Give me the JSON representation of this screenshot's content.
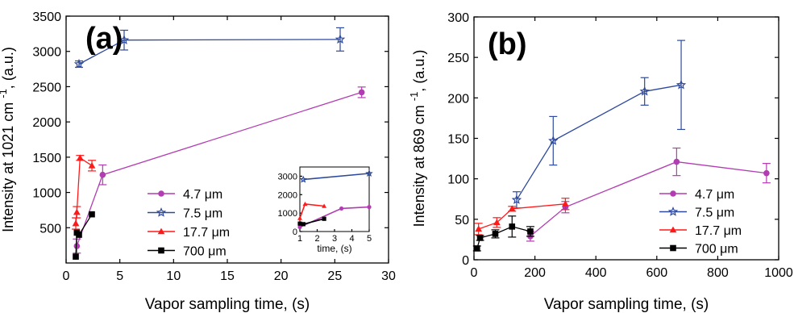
{
  "chart_data": [
    {
      "panel": "(a)",
      "type": "line",
      "xlabel": "Vapor sampling time, (s)",
      "ylabel": "Intensity at 1021 cm",
      "ylabel_sup": "-1",
      "ylabel_suffix": ", (a.u.)",
      "xlim": [
        0,
        30
      ],
      "ylim": [
        0,
        3500
      ],
      "xticks": [
        0,
        5,
        10,
        15,
        20,
        25,
        30
      ],
      "yticks": [
        500,
        1000,
        1500,
        2000,
        2500,
        3000,
        3500
      ],
      "legend_position": "lower-center",
      "series": [
        {
          "name": "4.7 μm",
          "color": "#b23cb2",
          "marker": "circle",
          "x": [
            1.0,
            3.4,
            27.5
          ],
          "y": [
            240,
            1250,
            2420
          ],
          "err": [
            100,
            140,
            75
          ]
        },
        {
          "name": "7.5 μm",
          "color": "#2e4a9e",
          "marker": "star",
          "x": [
            1.2,
            5.4,
            25.5
          ],
          "y": [
            2820,
            3160,
            3170
          ],
          "err": [
            45,
            140,
            165
          ]
        },
        {
          "name": "17.7 μm",
          "color": "#ff1a1a",
          "marker": "triangle",
          "x": [
            0.9,
            1.0,
            1.3,
            2.4
          ],
          "y": [
            560,
            720,
            1490,
            1380
          ],
          "err": [
            80,
            80,
            35,
            75
          ]
        },
        {
          "name": "700 μm",
          "color": "#000000",
          "marker": "square",
          "x": [
            0.9,
            1.0,
            1.2,
            2.4
          ],
          "y": [
            90,
            430,
            400,
            690
          ],
          "err": [
            0,
            0,
            0,
            0
          ]
        }
      ],
      "inset": {
        "xlabel": "time, (s)",
        "xlim": [
          1,
          5
        ],
        "ylim": [
          0,
          3500
        ],
        "xticks": [
          1,
          2,
          3,
          4,
          5
        ],
        "yticks": [
          0,
          1000,
          2000,
          3000
        ],
        "series": [
          {
            "color": "#b23cb2",
            "marker": "circle",
            "x": [
              1.0,
              3.4,
              5.0
            ],
            "y": [
              240,
              1250,
              1330
            ]
          },
          {
            "color": "#2e4a9e",
            "marker": "star",
            "x": [
              1.2,
              5.0
            ],
            "y": [
              2820,
              3150
            ]
          },
          {
            "color": "#ff1a1a",
            "marker": "triangle",
            "x": [
              1.0,
              1.3,
              2.4
            ],
            "y": [
              720,
              1490,
              1380
            ]
          },
          {
            "color": "#000000",
            "marker": "square",
            "x": [
              1.0,
              1.2,
              2.4
            ],
            "y": [
              430,
              400,
              690
            ]
          }
        ]
      }
    },
    {
      "panel": "(b)",
      "type": "line",
      "xlabel": "Vapor sampling time, (s)",
      "ylabel": "Intensity at 869 cm",
      "ylabel_sup": "-1",
      "ylabel_suffix": ", (a.u.)",
      "xlim": [
        0,
        1000
      ],
      "ylim": [
        0,
        300
      ],
      "xticks": [
        0,
        200,
        400,
        600,
        800,
        1000
      ],
      "yticks": [
        0,
        50,
        100,
        150,
        200,
        250,
        300
      ],
      "legend_position": "lower-right",
      "series": [
        {
          "name": "4.7 μm",
          "color": "#b23cb2",
          "marker": "circle",
          "x": [
            185,
            300,
            665,
            960
          ],
          "y": [
            29,
            65,
            121,
            107
          ],
          "err": [
            6,
            7,
            17,
            12
          ]
        },
        {
          "name": "7.5 μm",
          "color": "#2e4a9e",
          "marker": "star",
          "x": [
            140,
            260,
            560,
            680
          ],
          "y": [
            74,
            147,
            208,
            216
          ],
          "err": [
            10,
            30,
            17,
            55
          ]
        },
        {
          "name": "17.7 μm",
          "color": "#ff1a1a",
          "marker": "triangle",
          "x": [
            15,
            75,
            125,
            300
          ],
          "y": [
            38,
            46,
            63,
            69
          ],
          "err": [
            7,
            6,
            3,
            7
          ]
        },
        {
          "name": "700 μm",
          "color": "#000000",
          "marker": "square",
          "x": [
            10,
            20,
            70,
            125,
            185
          ],
          "y": [
            14,
            27,
            32,
            41,
            35
          ],
          "err": [
            3,
            3,
            5,
            13,
            6
          ]
        }
      ]
    }
  ]
}
